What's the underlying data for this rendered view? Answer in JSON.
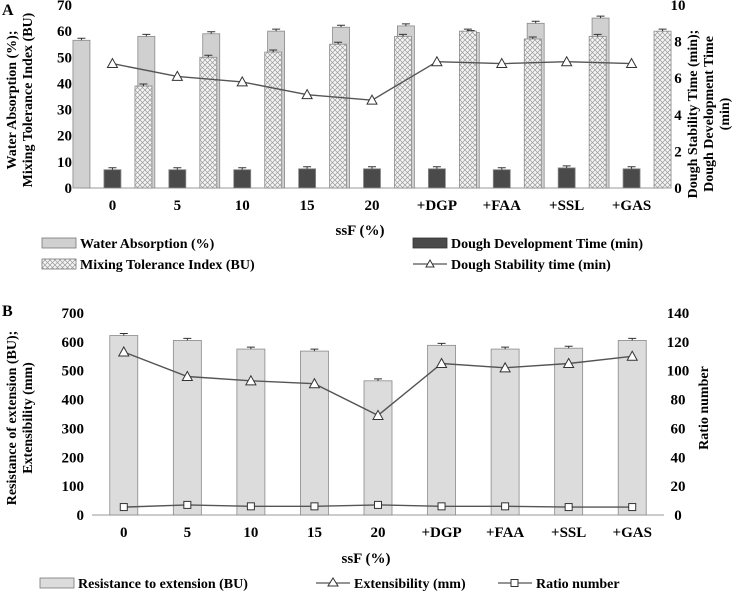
{
  "chart_data": [
    {
      "panel_label": "A",
      "type": "bar+line",
      "categories": [
        "0",
        "5",
        "10",
        "15",
        "20",
        "+DGP",
        "+FAA",
        "+SSL",
        "+GAS"
      ],
      "xlabel": "ssF (%)",
      "ylabel_lines": [
        "Water Absorption (%);",
        "Mixing Tolerance Index (BU)"
      ],
      "y2label_lines": [
        "Dough Stability Time (min);",
        "Dough Development Time",
        "(min)"
      ],
      "ylim": [
        0,
        70
      ],
      "yticks": [
        "0",
        "10",
        "20",
        "30",
        "40",
        "50",
        "60",
        "70"
      ],
      "y2lim": [
        0,
        10
      ],
      "y2ticks": [
        "0",
        "2",
        "4",
        "6",
        "8",
        "10"
      ],
      "series": [
        {
          "name": "Water Absorption (%)",
          "kind": "bar",
          "axis": "left",
          "color": "#d0d0d0",
          "values": [
            56.5,
            58,
            59,
            60,
            61.5,
            62,
            59.5,
            63,
            65
          ]
        },
        {
          "name": "Dough Development Time (min)",
          "kind": "bar",
          "axis": "right",
          "color": "#4a4a4a",
          "values": [
            1.0,
            1.0,
            1.0,
            1.05,
            1.05,
            1.05,
            1.0,
            1.1,
            1.05
          ]
        },
        {
          "name": "Mixing Tolerance Index (BU)",
          "kind": "bar",
          "axis": "left",
          "color": "#f2f2f2",
          "hatch": true,
          "values": [
            39,
            50,
            52,
            55,
            58,
            60,
            57,
            58,
            60
          ]
        },
        {
          "name": "Dough Stability time (min)",
          "kind": "line",
          "axis": "right",
          "color": "#555555",
          "marker": "triangle",
          "values": [
            6.8,
            6.1,
            5.8,
            5.1,
            4.8,
            6.9,
            6.8,
            6.9,
            6.8
          ]
        }
      ],
      "legend": [
        "Water Absorption (%)",
        "Dough Development Time (min)",
        "Mixing Tolerance Index (BU)",
        "Dough Stability time (min)"
      ],
      "legend_position": "bottom"
    },
    {
      "panel_label": "B",
      "type": "bar+line",
      "categories": [
        "0",
        "5",
        "10",
        "15",
        "20",
        "+DGP",
        "+FAA",
        "+SSL",
        "+GAS"
      ],
      "xlabel": "ssF (%)",
      "ylabel_lines": [
        "Resistance of extension (BU);",
        "Extensibility (mm)"
      ],
      "y2label_lines": [
        "Ratio number"
      ],
      "ylim": [
        0,
        700
      ],
      "yticks": [
        "0",
        "100",
        "200",
        "300",
        "400",
        "500",
        "600",
        "700"
      ],
      "y2lim": [
        0,
        140
      ],
      "y2ticks": [
        "0",
        "20",
        "40",
        "60",
        "80",
        "100",
        "120",
        "140"
      ],
      "series": [
        {
          "name": "Resistance to extension  (BU)",
          "kind": "bar",
          "axis": "left",
          "color": "#dcdcdc",
          "values": [
            622,
            605,
            575,
            568,
            465,
            588,
            575,
            578,
            605
          ]
        },
        {
          "name": "Extensibility (mm)",
          "kind": "line",
          "axis": "right",
          "color": "#555555",
          "marker": "triangle",
          "values": [
            113,
            96,
            93,
            91,
            69,
            105,
            102,
            105,
            110
          ]
        },
        {
          "name": "Ratio number",
          "kind": "line",
          "axis": "right",
          "color": "#555555",
          "marker": "square",
          "values": [
            5.5,
            7,
            6,
            6,
            7,
            6,
            6,
            5.5,
            5.5
          ]
        }
      ],
      "legend": [
        "Resistance to extension  (BU)",
        "Extensibility (mm)",
        "Ratio number"
      ],
      "legend_position": "bottom"
    }
  ]
}
